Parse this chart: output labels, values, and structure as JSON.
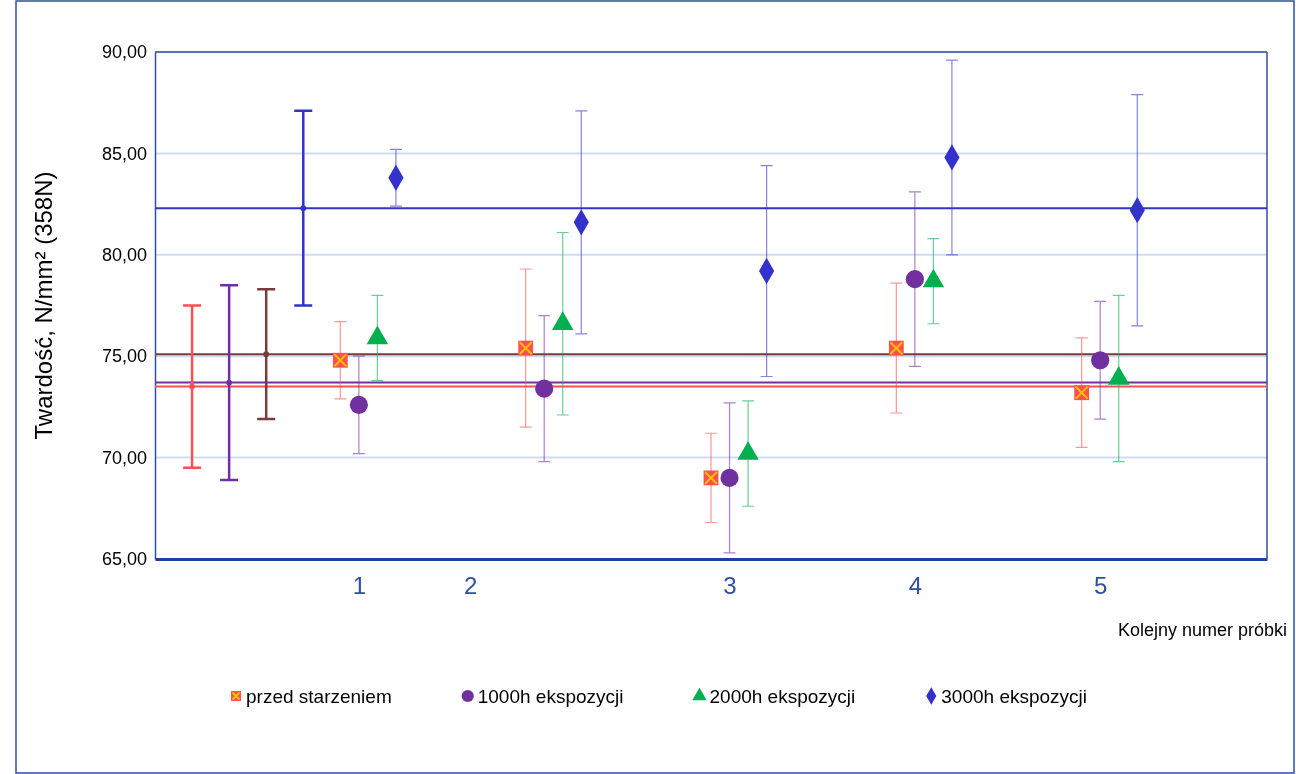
{
  "chart_data": {
    "type": "scatter",
    "ylabel": "Twardość, N/mm² (358N)",
    "xlabel": "Kolejny numer próbki",
    "categories": [
      null,
      null,
      null,
      null,
      null,
      null,
      null,
      null,
      null,
      null,
      null,
      "1",
      null,
      null,
      null,
      null,
      null,
      "2",
      null,
      null,
      null,
      null,
      null,
      null,
      null,
      null,
      null,
      null,
      null,
      null,
      null,
      "3",
      null,
      null,
      null,
      null,
      null,
      null,
      null,
      null,
      null,
      "4",
      null,
      null,
      null,
      null,
      null,
      null,
      null,
      null,
      null,
      "5",
      null,
      null,
      null,
      null,
      null,
      null,
      null,
      null
    ],
    "ylim": [
      65,
      90
    ],
    "yticks": [
      {
        "value": 65,
        "label": "65,00"
      },
      {
        "value": 70,
        "label": "70,00"
      },
      {
        "value": 75,
        "label": "75,00"
      },
      {
        "value": 80,
        "label": "80,00"
      },
      {
        "value": 85,
        "label": "85,00"
      },
      {
        "value": 90,
        "label": "90,00"
      }
    ],
    "grid": "y",
    "legend": "bottom",
    "series": [
      {
        "name": "przed starzeniem",
        "color": "#ff5050",
        "marker": "square",
        "values": [
          null,
          null,
          null,
          null,
          null,
          null,
          null,
          null,
          null,
          null,
          74.8,
          null,
          null,
          null,
          null,
          null,
          null,
          null,
          null,
          null,
          75.4,
          null,
          null,
          null,
          null,
          null,
          null,
          null,
          null,
          null,
          69.0,
          null,
          null,
          null,
          null,
          null,
          null,
          null,
          null,
          null,
          75.4,
          null,
          null,
          null,
          null,
          null,
          null,
          null,
          null,
          null,
          73.2,
          null,
          null,
          null,
          null,
          null,
          null,
          null,
          null,
          null
        ],
        "errors": [
          null,
          null,
          null,
          null,
          null,
          null,
          null,
          null,
          null,
          null,
          [
            72.9,
            76.7
          ],
          null,
          null,
          null,
          null,
          null,
          null,
          null,
          null,
          null,
          [
            71.5,
            79.3
          ],
          null,
          null,
          null,
          null,
          null,
          null,
          null,
          null,
          null,
          [
            66.8,
            71.2
          ],
          null,
          null,
          null,
          null,
          null,
          null,
          null,
          null,
          null,
          [
            72.2,
            78.6
          ],
          null,
          null,
          null,
          null,
          null,
          null,
          null,
          null,
          null,
          [
            70.5,
            75.9
          ],
          null,
          null,
          null,
          null,
          null,
          null,
          null,
          null,
          null
        ]
      },
      {
        "name": "1000h ekspozycji",
        "color": "#7030a0",
        "marker": "circle",
        "values": [
          null,
          null,
          null,
          null,
          null,
          null,
          null,
          null,
          null,
          null,
          null,
          72.6,
          null,
          null,
          null,
          null,
          null,
          null,
          null,
          null,
          null,
          73.4,
          null,
          null,
          null,
          null,
          null,
          null,
          null,
          null,
          null,
          69.0,
          null,
          null,
          null,
          null,
          null,
          null,
          null,
          null,
          null,
          78.8,
          null,
          null,
          null,
          null,
          null,
          null,
          null,
          null,
          null,
          74.8,
          null,
          null,
          null,
          null,
          null,
          null,
          null,
          null
        ],
        "errors": [
          null,
          null,
          null,
          null,
          null,
          null,
          null,
          null,
          null,
          null,
          null,
          [
            70.2,
            75.0
          ],
          null,
          null,
          null,
          null,
          null,
          null,
          null,
          null,
          null,
          [
            69.8,
            77.0
          ],
          null,
          null,
          null,
          null,
          null,
          null,
          null,
          null,
          null,
          [
            65.3,
            72.7
          ],
          null,
          null,
          null,
          null,
          null,
          null,
          null,
          null,
          null,
          [
            74.5,
            83.1
          ],
          null,
          null,
          null,
          null,
          null,
          null,
          null,
          null,
          null,
          [
            71.9,
            77.7
          ],
          null,
          null,
          null,
          null,
          null,
          null,
          null,
          null
        ]
      },
      {
        "name": "2000h ekspozycji",
        "color": "#00b050",
        "marker": "triangle",
        "values": [
          null,
          null,
          null,
          null,
          null,
          null,
          null,
          null,
          null,
          null,
          null,
          null,
          75.9,
          null,
          null,
          null,
          null,
          null,
          null,
          null,
          null,
          null,
          76.6,
          null,
          null,
          null,
          null,
          null,
          null,
          null,
          null,
          null,
          70.2,
          null,
          null,
          null,
          null,
          null,
          null,
          null,
          null,
          null,
          78.7,
          null,
          null,
          null,
          null,
          null,
          null,
          null,
          null,
          null,
          73.9,
          null,
          null,
          null,
          null,
          null,
          null,
          null
        ],
        "errors": [
          null,
          null,
          null,
          null,
          null,
          null,
          null,
          null,
          null,
          null,
          null,
          null,
          [
            73.8,
            78.0
          ],
          null,
          null,
          null,
          null,
          null,
          null,
          null,
          null,
          null,
          [
            72.1,
            81.1
          ],
          null,
          null,
          null,
          null,
          null,
          null,
          null,
          null,
          null,
          [
            67.6,
            72.8
          ],
          null,
          null,
          null,
          null,
          null,
          null,
          null,
          null,
          null,
          [
            76.6,
            80.8
          ],
          null,
          null,
          null,
          null,
          null,
          null,
          null,
          null,
          null,
          [
            69.8,
            78.0
          ],
          null,
          null,
          null,
          null,
          null,
          null,
          null
        ]
      },
      {
        "name": "3000h ekspozycji",
        "color": "#3333cc",
        "marker": "diamond",
        "values": [
          null,
          null,
          null,
          null,
          null,
          null,
          null,
          null,
          null,
          null,
          null,
          null,
          null,
          83.8,
          null,
          null,
          null,
          null,
          null,
          null,
          null,
          null,
          null,
          81.6,
          null,
          null,
          null,
          null,
          null,
          null,
          null,
          null,
          null,
          79.2,
          null,
          null,
          null,
          null,
          null,
          null,
          null,
          null,
          null,
          84.8,
          null,
          null,
          null,
          null,
          null,
          null,
          null,
          null,
          null,
          82.2,
          null,
          null,
          null,
          null,
          null,
          null
        ],
        "errors": [
          null,
          null,
          null,
          null,
          null,
          null,
          null,
          null,
          null,
          null,
          null,
          null,
          null,
          [
            82.4,
            85.2
          ],
          null,
          null,
          null,
          null,
          null,
          null,
          null,
          null,
          null,
          [
            76.1,
            87.1
          ],
          null,
          null,
          null,
          null,
          null,
          null,
          null,
          null,
          null,
          [
            74.0,
            84.4
          ],
          null,
          null,
          null,
          null,
          null,
          null,
          null,
          null,
          null,
          [
            80.0,
            89.6
          ],
          null,
          null,
          null,
          null,
          null,
          null,
          null,
          null,
          null,
          [
            76.5,
            87.9
          ],
          null,
          null,
          null,
          null,
          null,
          null
        ]
      },
      {
        "color": "#ff5050",
        "marker": "circle",
        "values": [
          null,
          null,
          73.5,
          null,
          null,
          null,
          null,
          null,
          null,
          null,
          null,
          null,
          null,
          null,
          null,
          null,
          null,
          null,
          null,
          null,
          null,
          null,
          null,
          null,
          null,
          null,
          null,
          null,
          null,
          null,
          null,
          null,
          null,
          null,
          null,
          null,
          null,
          null,
          null,
          null,
          null,
          null,
          null,
          null,
          null,
          null,
          null,
          null,
          null,
          null,
          null,
          null,
          null,
          null,
          null,
          null,
          null,
          null,
          null,
          null
        ],
        "errors": [
          null,
          null,
          [
            69.5,
            77.5
          ],
          null,
          null,
          null,
          null,
          null,
          null,
          null,
          null,
          null,
          null,
          null,
          null,
          null,
          null,
          null,
          null,
          null,
          null,
          null,
          null,
          null,
          null,
          null,
          null,
          null,
          null,
          null,
          null,
          null,
          null,
          null,
          null,
          null,
          null,
          null,
          null,
          null,
          null,
          null,
          null,
          null,
          null,
          null,
          null,
          null,
          null,
          null,
          null,
          null,
          null,
          null,
          null,
          null,
          null,
          null,
          null,
          null
        ]
      },
      {
        "color": "#7030a0",
        "marker": "circle",
        "values": [
          null,
          null,
          null,
          null,
          73.7,
          null,
          null,
          null,
          null,
          null,
          null,
          null,
          null,
          null,
          null,
          null,
          null,
          null,
          null,
          null,
          null,
          null,
          null,
          null,
          null,
          null,
          null,
          null,
          null,
          null,
          null,
          null,
          null,
          null,
          null,
          null,
          null,
          null,
          null,
          null,
          null,
          null,
          null,
          null,
          null,
          null,
          null,
          null,
          null,
          null,
          null,
          null,
          null,
          null,
          null,
          null,
          null,
          null,
          null,
          null
        ],
        "errors": [
          null,
          null,
          null,
          null,
          [
            68.9,
            78.5
          ],
          null,
          null,
          null,
          null,
          null,
          null,
          null,
          null,
          null,
          null,
          null,
          null,
          null,
          null,
          null,
          null,
          null,
          null,
          null,
          null,
          null,
          null,
          null,
          null,
          null,
          null,
          null,
          null,
          null,
          null,
          null,
          null,
          null,
          null,
          null,
          null,
          null,
          null,
          null,
          null,
          null,
          null,
          null,
          null,
          null,
          null,
          null,
          null,
          null,
          null,
          null,
          null,
          null,
          null,
          null
        ]
      },
      {
        "color": "#7b3b3b",
        "marker": "circle",
        "values": [
          null,
          null,
          null,
          null,
          null,
          null,
          75.1,
          null,
          null,
          null,
          null,
          null,
          null,
          null,
          null,
          null,
          null,
          null,
          null,
          null,
          null,
          null,
          null,
          null,
          null,
          null,
          null,
          null,
          null,
          null,
          null,
          null,
          null,
          null,
          null,
          null,
          null,
          null,
          null,
          null,
          null,
          null,
          null,
          null,
          null,
          null,
          null,
          null,
          null,
          null,
          null,
          null,
          null,
          null,
          null,
          null,
          null,
          null,
          null,
          null
        ],
        "errors": [
          null,
          null,
          null,
          null,
          null,
          null,
          [
            71.9,
            78.3
          ],
          null,
          null,
          null,
          null,
          null,
          null,
          null,
          null,
          null,
          null,
          null,
          null,
          null,
          null,
          null,
          null,
          null,
          null,
          null,
          null,
          null,
          null,
          null,
          null,
          null,
          null,
          null,
          null,
          null,
          null,
          null,
          null,
          null,
          null,
          null,
          null,
          null,
          null,
          null,
          null,
          null,
          null,
          null,
          null,
          null,
          null,
          null,
          null,
          null,
          null,
          null,
          null,
          null
        ]
      },
      {
        "color": "#3333cc",
        "marker": "circle",
        "values": [
          null,
          null,
          null,
          null,
          null,
          null,
          null,
          null,
          82.3,
          null,
          null,
          null,
          null,
          null,
          null,
          null,
          null,
          null,
          null,
          null,
          null,
          null,
          null,
          null,
          null,
          null,
          null,
          null,
          null,
          null,
          null,
          null,
          null,
          null,
          null,
          null,
          null,
          null,
          null,
          null,
          null,
          null,
          null,
          null,
          null,
          null,
          null,
          null,
          null,
          null,
          null,
          null,
          null,
          null,
          null,
          null,
          null,
          null,
          null,
          null
        ],
        "errors": [
          null,
          null,
          null,
          null,
          null,
          null,
          null,
          null,
          [
            77.5,
            87.1
          ],
          null,
          null,
          null,
          null,
          null,
          null,
          null,
          null,
          null,
          null,
          null,
          null,
          null,
          null,
          null,
          null,
          null,
          null,
          null,
          null,
          null,
          null,
          null,
          null,
          null,
          null,
          null,
          null,
          null,
          null,
          null,
          null,
          null,
          null,
          null,
          null,
          null,
          null,
          null,
          null,
          null,
          null,
          null,
          null,
          null,
          null,
          null,
          null,
          null,
          null,
          null
        ]
      }
    ],
    "ref_lines": [
      {
        "axis": "y",
        "value": 82.3,
        "color": "#3333cc"
      },
      {
        "axis": "y",
        "value": 75.1,
        "color": "#7b3b3b"
      },
      {
        "axis": "y",
        "value": 73.7,
        "color": "#7030a0"
      },
      {
        "axis": "y",
        "value": 73.5,
        "color": "#ff5050"
      }
    ]
  }
}
